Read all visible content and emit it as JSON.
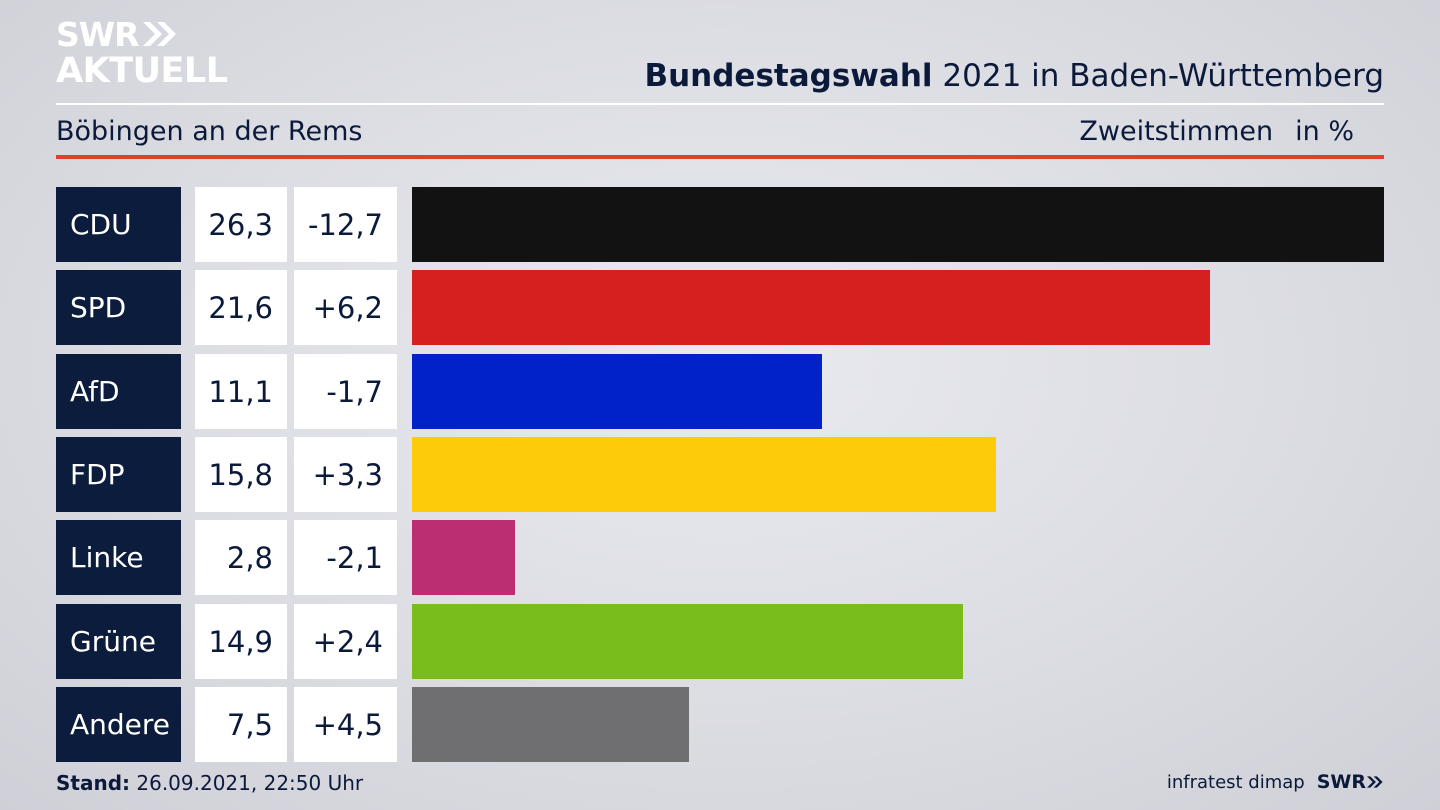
{
  "logo": {
    "line1": "SWR",
    "line2": "AKTUELL"
  },
  "header": {
    "title_bold": "Bundestagswahl",
    "title_rest": " 2021 in Baden-Württemberg",
    "subtitle": "Böbingen an der Rems",
    "measure": "Zweitstimmen",
    "unit": "in %"
  },
  "chart_data": {
    "type": "bar",
    "orientation": "horizontal",
    "categories": [
      "CDU",
      "SPD",
      "AfD",
      "FDP",
      "Linke",
      "Grüne",
      "Andere"
    ],
    "values": [
      26.3,
      21.6,
      11.1,
      15.8,
      2.8,
      14.9,
      7.5
    ],
    "value_labels": [
      "26,3",
      "21,6",
      "11,1",
      "15,8",
      "2,8",
      "14,9",
      "7,5"
    ],
    "changes": [
      "-12,7",
      "+6,2",
      "-1,7",
      "+3,3",
      "-2,1",
      "+2,4",
      "+4,5"
    ],
    "colors": [
      "#121212",
      "#d61f1f",
      "#0022c8",
      "#fecb0a",
      "#bc2e72",
      "#78bd1b",
      "#6f6f71"
    ],
    "xlim": [
      0,
      26.3
    ]
  },
  "footer": {
    "stand_label": "Stand:",
    "stand_value": " 26.09.2021, 22:50 Uhr",
    "source": "infratest dimap",
    "brand": "SWR"
  }
}
